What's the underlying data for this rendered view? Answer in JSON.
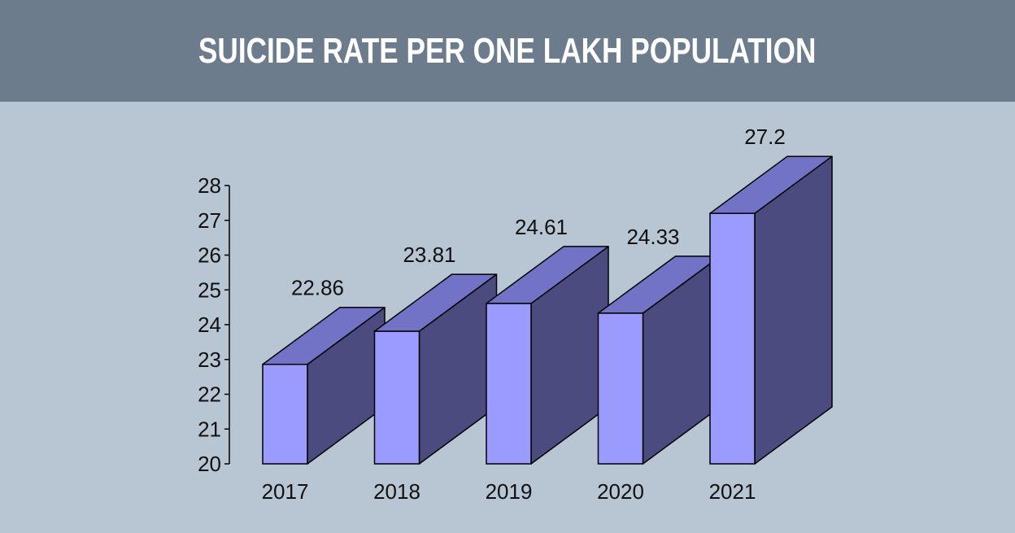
{
  "header": {
    "title": "SUICIDE RATE PER ONE LAKH POPULATION"
  },
  "colors": {
    "header_bg": "#6d7c8c",
    "page_bg": "#b8c5d3",
    "bar_front": "#9b9bfd",
    "bar_top": "#7272c6",
    "bar_side": "#4c4b80"
  },
  "chart_data": {
    "type": "bar",
    "title": "",
    "xlabel": "",
    "ylabel": "",
    "categories": [
      "2017",
      "2018",
      "2019",
      "2020",
      "2021"
    ],
    "values": [
      22.86,
      23.81,
      24.61,
      24.33,
      27.2
    ],
    "value_labels": [
      "22.86",
      "23.81",
      "24.61",
      "24.33",
      "27.2"
    ],
    "ylim": [
      20,
      28
    ],
    "yticks": [
      "20",
      "21",
      "22",
      "23",
      "24",
      "25",
      "26",
      "27",
      "28"
    ],
    "style": "3d",
    "grid": false,
    "legend": "none"
  }
}
